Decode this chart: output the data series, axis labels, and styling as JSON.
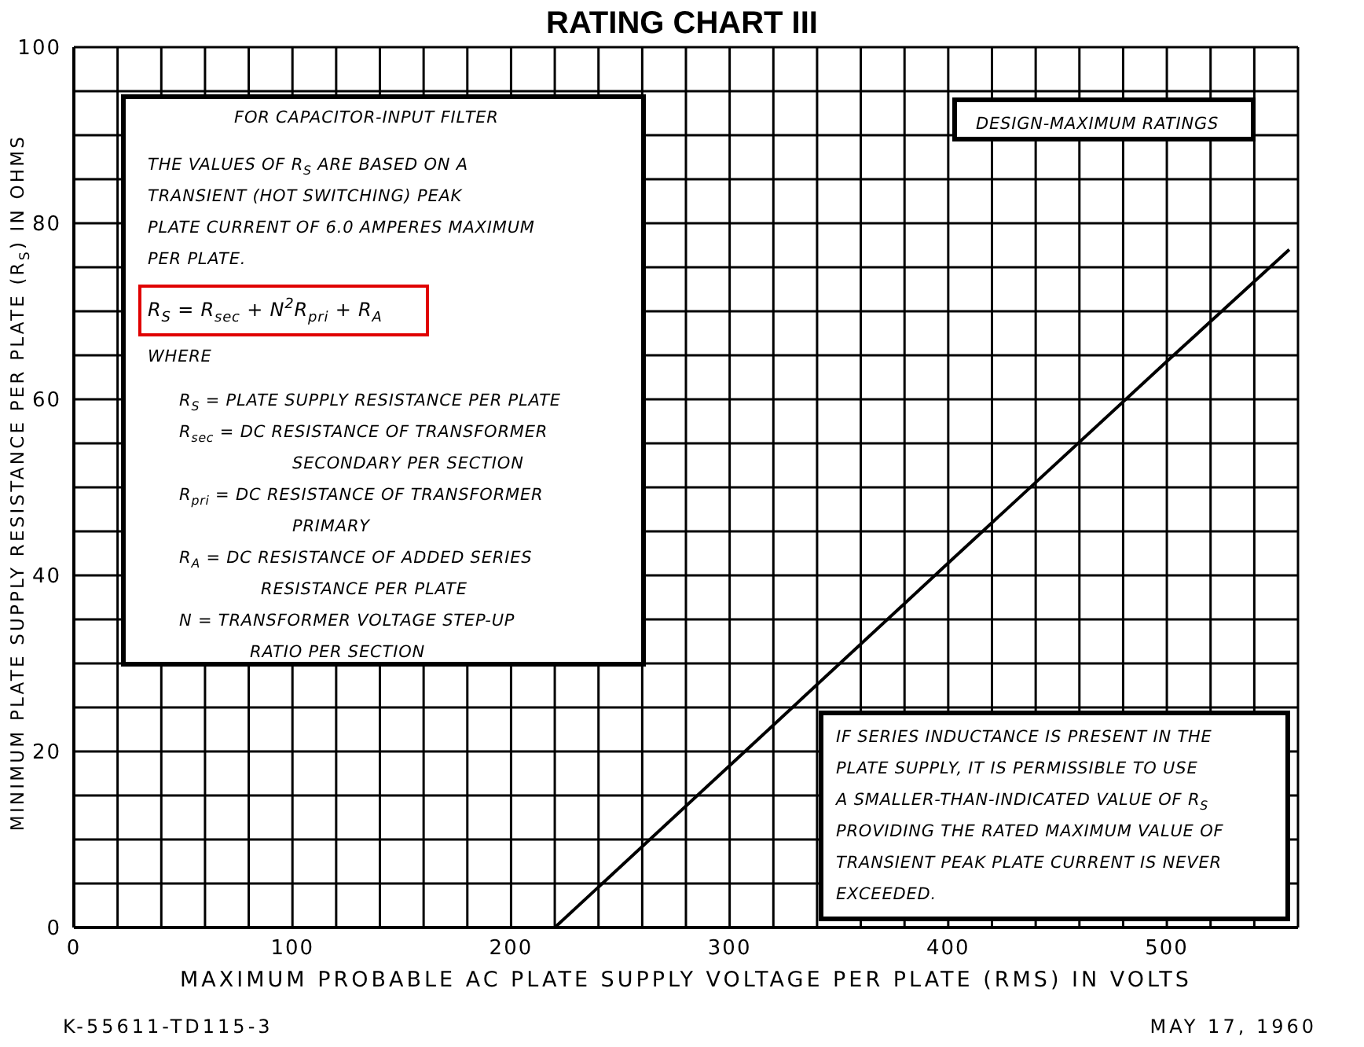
{
  "chart_data": {
    "type": "line",
    "title": "RATING CHART III",
    "xlabel": "MAXIMUM PROBABLE AC PLATE SUPPLY VOLTAGE PER PLATE (RMS) IN VOLTS",
    "ylabel": "MINIMUM PLATE SUPPLY RESISTANCE PER PLATE (R$_{S}$) IN OHMS",
    "x": [
      220,
      300,
      400,
      500,
      556
    ],
    "series": [
      {
        "color": "#000000",
        "values": [
          0,
          18.4,
          41.4,
          64.3,
          77
        ]
      }
    ],
    "xlim": [
      0,
      560
    ],
    "xticks": [
      0,
      {
        "value": 20,
        "label": null
      },
      {
        "value": 40,
        "label": null
      },
      {
        "value": 60,
        "label": null
      },
      {
        "value": 80,
        "label": null
      },
      100,
      {
        "value": 120,
        "label": null
      },
      {
        "value": 140,
        "label": null
      },
      {
        "value": 160,
        "label": null
      },
      {
        "value": 180,
        "label": null
      },
      200,
      {
        "value": 220,
        "label": null
      },
      {
        "value": 240,
        "label": null
      },
      {
        "value": 260,
        "label": null
      },
      {
        "value": 280,
        "label": null
      },
      300,
      {
        "value": 320,
        "label": null
      },
      {
        "value": 340,
        "label": null
      },
      {
        "value": 360,
        "label": null
      },
      {
        "value": 380,
        "label": null
      },
      400,
      {
        "value": 420,
        "label": null
      },
      {
        "value": 440,
        "label": null
      },
      {
        "value": 460,
        "label": null
      },
      {
        "value": 480,
        "label": null
      },
      500,
      {
        "value": 520,
        "label": null
      },
      {
        "value": 540,
        "label": null
      },
      {
        "value": 560,
        "label": null
      }
    ],
    "ylim": [
      0,
      100
    ],
    "yticks": [
      0,
      {
        "value": 5,
        "label": null
      },
      {
        "value": 10,
        "label": null
      },
      {
        "value": 15,
        "label": null
      },
      20,
      {
        "value": 25,
        "label": null
      },
      {
        "value": 30,
        "label": null
      },
      {
        "value": 35,
        "label": null
      },
      40,
      {
        "value": 45,
        "label": null
      },
      {
        "value": 50,
        "label": null
      },
      {
        "value": 55,
        "label": null
      },
      60,
      {
        "value": 65,
        "label": null
      },
      {
        "value": 70,
        "label": null
      },
      {
        "value": 75,
        "label": null
      },
      80,
      {
        "value": 85,
        "label": null
      },
      {
        "value": 90,
        "label": null
      },
      {
        "value": 95,
        "label": null
      },
      100
    ],
    "grid": true,
    "legend": false,
    "marker": "none",
    "line_style": "solid",
    "annotations": [
      "FOR CAPACITOR-INPUT FILTER",
      "THE VALUES OF R$_{S}$ ARE BASED ON A\nTRANSIENT (HOT SWITCHING) PEAK\nPLATE CURRENT OF 6.0 AMPERES MAXIMUM\nPER PLATE.",
      "R$_{S}$ = R$_{sec}$ + N$^{2}$R$_{pri}$ + R$_{A}$",
      "WHERE",
      "R$_{S}$ = PLATE SUPPLY RESISTANCE PER PLATE",
      "R$_{sec}$ = DC RESISTANCE OF TRANSFORMER\nSECONDARY PER SECTION",
      "R$_{pri}$ = DC RESISTANCE OF TRANSFORMER\nPRIMARY",
      "R$_{A}$ = DC RESISTANCE OF ADDED SERIES\nRESISTANCE PER PLATE",
      "N = TRANSFORMER VOLTAGE STEP-UP\nRATIO PER SECTION",
      "DESIGN-MAXIMUM RATINGS",
      "IF SERIES INDUCTANCE IS PRESENT IN THE\nPLATE SUPPLY, IT IS PERMISSIBLE TO USE\nA SMALLER-THAN-INDICATED VALUE OF R$_{S}$\nPROVIDING THE RATED MAXIMUM VALUE OF\nTRANSIENT PEAK PLATE CURRENT IS NEVER\nEXCEEDED.",
      "K-55611-TD115-3",
      "MAY 17, 1960"
    ]
  }
}
